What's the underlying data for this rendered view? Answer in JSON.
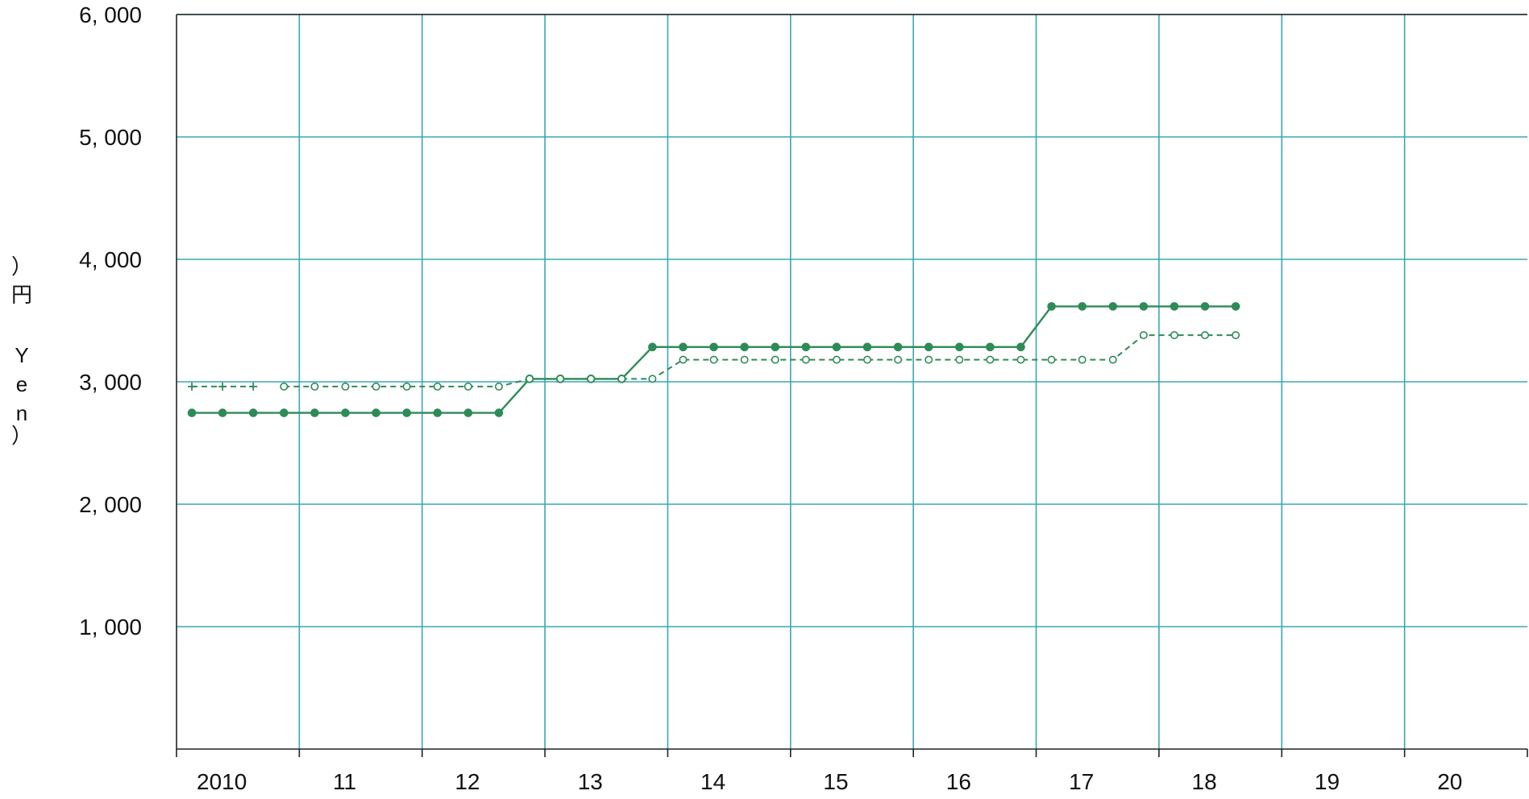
{
  "chart_data": {
    "type": "line",
    "ylabel": [
      "）",
      "円",
      "Y",
      "e",
      "n",
      "）"
    ],
    "yticks": [
      "6, 000",
      "5, 000",
      "4, 000",
      "3, 000",
      "2, 000",
      "1, 000"
    ],
    "ytick_values": [
      6000,
      5000,
      4000,
      3000,
      2000,
      1000
    ],
    "xticks": [
      "2010",
      "11",
      "12",
      "13",
      "14",
      "15",
      "16",
      "17",
      "18",
      "19",
      "20"
    ],
    "xlim": [
      2010.0,
      2021.0
    ],
    "ylim": [
      0,
      6000
    ],
    "grid": true,
    "colors": {
      "series": "#2e8b57",
      "grid": "#3aa7b5",
      "axis": "#222222"
    },
    "series": [
      {
        "style": "solid-filled-circle",
        "points": [
          [
            2010.125,
            2746
          ],
          [
            2010.375,
            2746
          ],
          [
            2010.625,
            2746
          ],
          [
            2010.875,
            2746
          ],
          [
            2011.125,
            2746
          ],
          [
            2011.375,
            2746
          ],
          [
            2011.625,
            2746
          ],
          [
            2011.875,
            2746
          ],
          [
            2012.125,
            2746
          ],
          [
            2012.375,
            2746
          ],
          [
            2012.625,
            2746
          ],
          [
            2012.875,
            3024
          ],
          [
            2013.125,
            3024
          ],
          [
            2013.375,
            3024
          ],
          [
            2013.625,
            3024
          ],
          [
            2013.875,
            3284
          ],
          [
            2014.125,
            3284
          ],
          [
            2014.375,
            3284
          ],
          [
            2014.625,
            3284
          ],
          [
            2014.875,
            3284
          ],
          [
            2015.125,
            3284
          ],
          [
            2015.375,
            3284
          ],
          [
            2015.625,
            3284
          ],
          [
            2015.875,
            3284
          ],
          [
            2016.125,
            3284
          ],
          [
            2016.375,
            3284
          ],
          [
            2016.625,
            3284
          ],
          [
            2016.875,
            3284
          ],
          [
            2017.125,
            3616
          ],
          [
            2017.375,
            3616
          ],
          [
            2017.625,
            3616
          ],
          [
            2017.875,
            3616
          ],
          [
            2018.125,
            3616
          ],
          [
            2018.375,
            3616
          ],
          [
            2018.625,
            3616
          ]
        ]
      },
      {
        "style": "dashed-plus",
        "points": [
          [
            2010.125,
            2961
          ],
          [
            2010.375,
            2961
          ],
          [
            2010.625,
            2961
          ]
        ]
      },
      {
        "style": "dashed-open-circle",
        "points": [
          [
            2010.875,
            2961
          ],
          [
            2011.125,
            2961
          ],
          [
            2011.375,
            2961
          ],
          [
            2011.625,
            2961
          ],
          [
            2011.875,
            2961
          ],
          [
            2012.125,
            2961
          ],
          [
            2012.375,
            2961
          ],
          [
            2012.625,
            2961
          ],
          [
            2012.875,
            3024
          ],
          [
            2013.125,
            3024
          ],
          [
            2013.375,
            3024
          ],
          [
            2013.625,
            3024
          ],
          [
            2013.875,
            3024
          ],
          [
            2014.125,
            3180
          ],
          [
            2014.375,
            3180
          ],
          [
            2014.625,
            3180
          ],
          [
            2014.875,
            3180
          ],
          [
            2015.125,
            3180
          ],
          [
            2015.375,
            3180
          ],
          [
            2015.625,
            3180
          ],
          [
            2015.875,
            3180
          ],
          [
            2016.125,
            3180
          ],
          [
            2016.375,
            3180
          ],
          [
            2016.625,
            3180
          ],
          [
            2016.875,
            3180
          ],
          [
            2017.125,
            3180
          ],
          [
            2017.375,
            3180
          ],
          [
            2017.625,
            3180
          ],
          [
            2017.875,
            3381
          ],
          [
            2018.125,
            3381
          ],
          [
            2018.375,
            3381
          ],
          [
            2018.625,
            3381
          ]
        ]
      }
    ]
  }
}
